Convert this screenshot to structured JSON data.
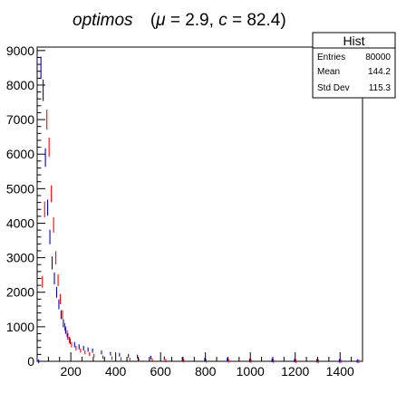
{
  "chart_data": {
    "type": "scatter",
    "title": {
      "name": "optimos",
      "params": "(μ = 2.9, c = 82.4)",
      "mu_symbol": "μ",
      "mu_rest": " = 2.9, ",
      "c_symbol": "c",
      "c_rest": " = 82.4)",
      "open_paren": "("
    },
    "xlabel": "",
    "ylabel": "",
    "xlim": [
      50,
      1500
    ],
    "ylim": [
      0,
      9100
    ],
    "xticks": [
      200,
      400,
      600,
      800,
      1000,
      1200,
      1400
    ],
    "xtick_labels": [
      "200",
      "400",
      "600",
      "800",
      "1000",
      "1200",
      "1400"
    ],
    "yticks": [
      0,
      1000,
      2000,
      3000,
      4000,
      5000,
      6000,
      7000,
      8000,
      9000
    ],
    "ytick_labels": [
      "0",
      "1000",
      "2000",
      "3000",
      "4000",
      "5000",
      "6000",
      "7000",
      "8000",
      "9000"
    ],
    "grid": false,
    "series": [
      {
        "color": "#0000cc",
        "x": [
          60,
          70,
          80,
          90,
          100,
          110,
          120,
          130,
          140,
          150,
          160,
          170,
          180,
          190,
          200,
          220,
          240,
          260,
          280,
          300,
          340,
          380,
          420,
          460,
          500,
          560,
          620,
          700,
          800,
          900,
          1000,
          1100,
          1200,
          1300,
          1400,
          1480
        ],
        "y": [
          0,
          8500,
          7850,
          5900,
          4450,
          3600,
          2850,
          2400,
          2000,
          1650,
          1350,
          1100,
          900,
          720,
          580,
          480,
          420,
          380,
          340,
          310,
          260,
          220,
          190,
          160,
          140,
          110,
          90,
          70,
          50,
          40,
          30,
          25,
          20,
          15,
          12,
          10
        ]
      },
      {
        "color": "#ff0000",
        "x": [
          70,
          80,
          90,
          100,
          110,
          120,
          130,
          140,
          150,
          160,
          170,
          180,
          190,
          200,
          220,
          240,
          260,
          280,
          300,
          340,
          380,
          420,
          460,
          500,
          560,
          620,
          700,
          800,
          900,
          1000,
          1100,
          1200,
          1300,
          1400,
          1480
        ],
        "y": [
          2300,
          4400,
          7000,
          6200,
          4850,
          3950,
          3000,
          2350,
          1800,
          1350,
          1000,
          800,
          620,
          480,
          380,
          310,
          260,
          210,
          170,
          120,
          90,
          70,
          50,
          40,
          30,
          20,
          15,
          10,
          8,
          6,
          5,
          4,
          3,
          2,
          2
        ]
      }
    ],
    "stats_box": {
      "title": "Hist",
      "rows": [
        {
          "label": "Entries",
          "value": "80000"
        },
        {
          "label": "Mean",
          "value": "144.2"
        },
        {
          "label": "Std Dev",
          "value": "115.3"
        }
      ]
    }
  }
}
